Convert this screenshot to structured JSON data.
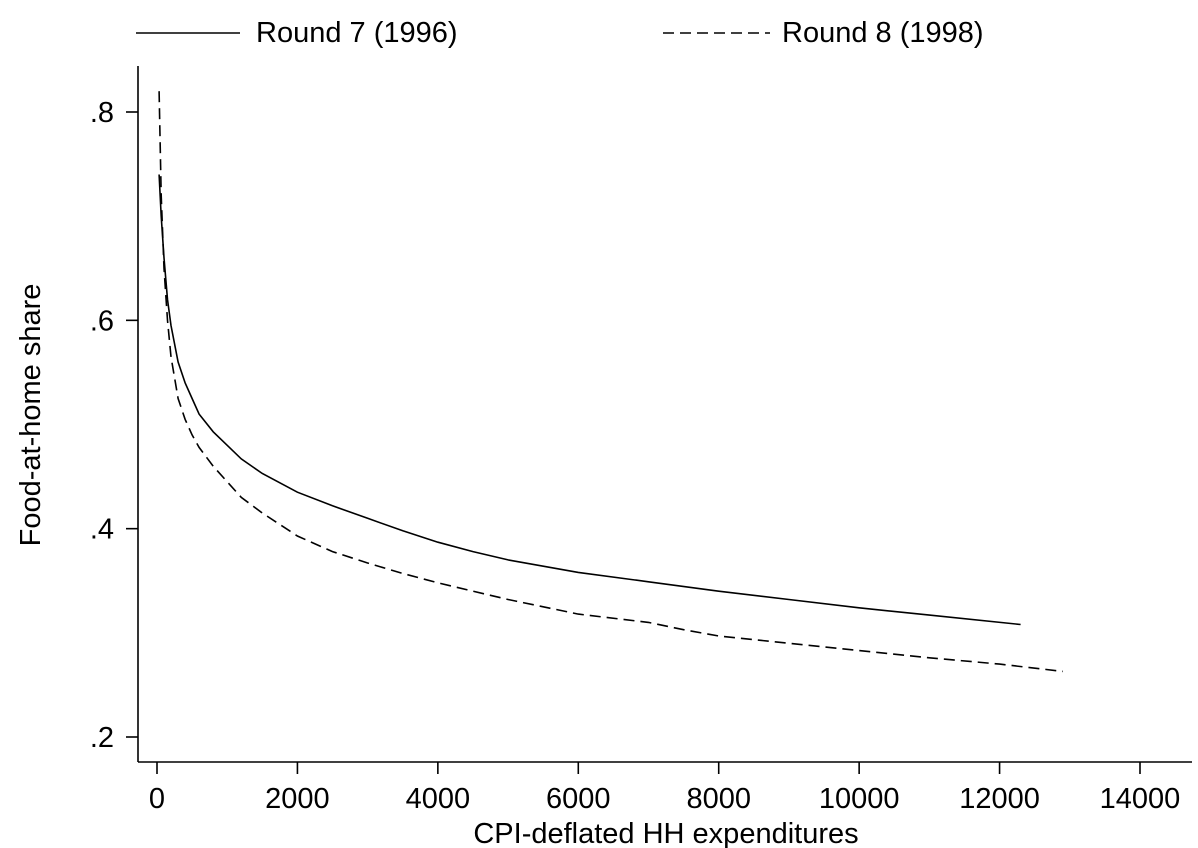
{
  "chart_data": {
    "type": "line",
    "title": "",
    "xlabel": "CPI-deflated HH expenditures",
    "ylabel": "Food-at-home share",
    "xlim": [
      0,
      14000
    ],
    "ylim": [
      0.2,
      0.82
    ],
    "x_ticks": [
      0,
      2000,
      4000,
      6000,
      8000,
      10000,
      12000,
      14000
    ],
    "x_tick_labels": [
      "0",
      "2000",
      "4000",
      "6000",
      "8000",
      "10000",
      "12000",
      "14000"
    ],
    "y_ticks": [
      0.2,
      0.4,
      0.6,
      0.8
    ],
    "y_tick_labels": [
      ".2",
      ".4",
      ".6",
      ".8"
    ],
    "grid": false,
    "legend_position": "top",
    "series": [
      {
        "name": "Round 7 (1996)",
        "line_style": "solid",
        "color": "#000000",
        "x": [
          30,
          60,
          100,
          150,
          200,
          300,
          400,
          500,
          600,
          800,
          1000,
          1200,
          1500,
          2000,
          2500,
          3000,
          3500,
          4000,
          4500,
          5000,
          6000,
          7000,
          8000,
          9000,
          10000,
          11000,
          12300
        ],
        "y": [
          0.74,
          0.7,
          0.66,
          0.62,
          0.595,
          0.56,
          0.54,
          0.525,
          0.51,
          0.493,
          0.48,
          0.467,
          0.453,
          0.435,
          0.422,
          0.41,
          0.398,
          0.387,
          0.378,
          0.37,
          0.358,
          0.349,
          0.34,
          0.332,
          0.324,
          0.317,
          0.308
        ]
      },
      {
        "name": "Round 8 (1998)",
        "line_style": "dashed",
        "color": "#000000",
        "x": [
          30,
          60,
          100,
          150,
          200,
          300,
          400,
          500,
          600,
          800,
          1000,
          1200,
          1500,
          2000,
          2500,
          3000,
          3500,
          4000,
          4500,
          5000,
          6000,
          7000,
          7500,
          8000,
          9000,
          10000,
          11000,
          12000,
          12900
        ],
        "y": [
          0.82,
          0.72,
          0.65,
          0.6,
          0.565,
          0.525,
          0.505,
          0.49,
          0.478,
          0.46,
          0.445,
          0.43,
          0.415,
          0.393,
          0.378,
          0.367,
          0.357,
          0.348,
          0.34,
          0.332,
          0.318,
          0.31,
          0.303,
          0.297,
          0.29,
          0.283,
          0.276,
          0.27,
          0.263
        ]
      }
    ]
  }
}
